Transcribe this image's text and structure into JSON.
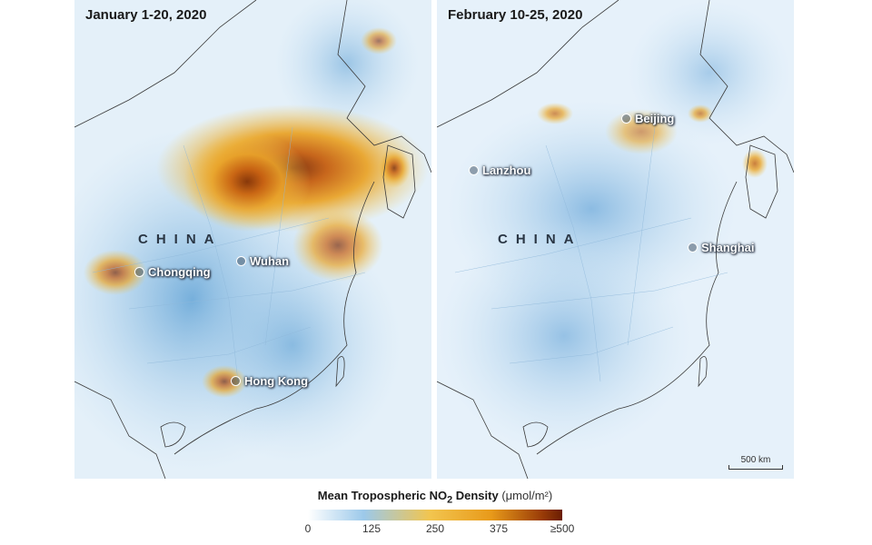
{
  "panels": [
    {
      "title": "January 1-20, 2020",
      "country_label": "CHINA",
      "cities": [
        "Chongqing",
        "Wuhan",
        "Hong Kong"
      ]
    },
    {
      "title": "February 10-25, 2020",
      "country_label": "CHINA",
      "cities": [
        "Beijing",
        "Lanzhou",
        "Shanghai"
      ],
      "scale_label": "500 km"
    }
  ],
  "legend": {
    "title_main": "Mean Tropospheric NO",
    "title_sub": "2",
    "title_rest": " Density",
    "unit": "(μmol/m²)",
    "ticks": [
      "0",
      "125",
      "250",
      "375",
      "≥500"
    ],
    "colors": [
      "#ffffff",
      "#9cc9ea",
      "#f2c54f",
      "#e89a1a",
      "#6a1d03"
    ]
  }
}
